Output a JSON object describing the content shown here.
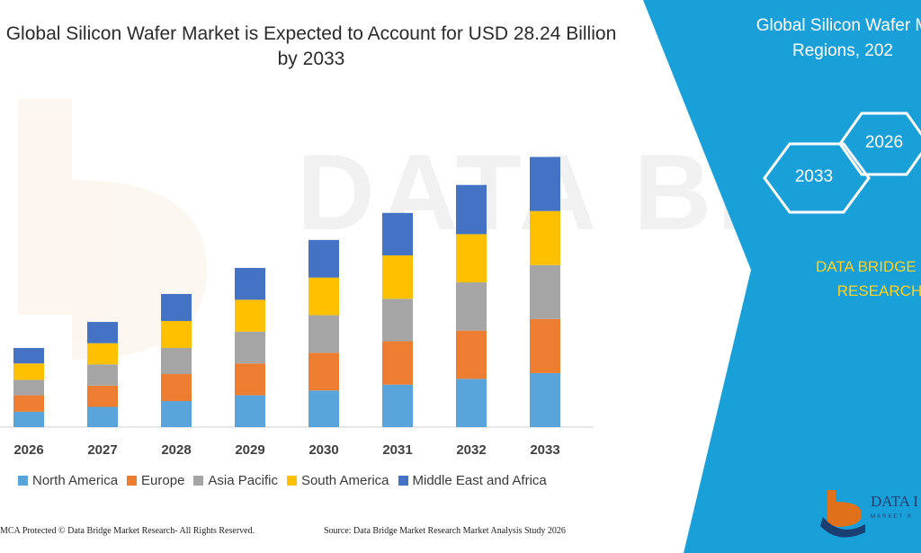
{
  "title": "Global Silicon Wafer Market is Expected to Account for USD 28.24 Billion by 2033",
  "right_panel": {
    "title_line1": "Global Silicon Wafer M",
    "title_line2": "Regions, 202",
    "hex_labels": [
      "2026",
      "2033"
    ],
    "brand_line1": "DATA BRIDGE MA",
    "brand_line2": "RESEARCH",
    "background_color": "#1aa0d8",
    "brand_text_color": "#ffd21f"
  },
  "footer": {
    "left": "MCA Protected © Data Bridge Market Research-  All Rights Reserved.",
    "right": "Source: Data Bridge Market Research  Market Analysis Study 2026"
  },
  "logo": {
    "text": "DATA I",
    "sub": "MARKET R"
  },
  "watermark": "DATA BRIDGE",
  "chart_data": {
    "type": "bar",
    "stacked": true,
    "categories": [
      "2026",
      "2027",
      "2028",
      "2029",
      "2030",
      "2031",
      "2032",
      "2033"
    ],
    "series": [
      {
        "name": "North America",
        "color": "#5aa4dc",
        "values": [
          1.6,
          2.1,
          2.7,
          3.3,
          3.8,
          4.4,
          5.0,
          5.6
        ]
      },
      {
        "name": "Europe",
        "color": "#ed7d31",
        "values": [
          1.7,
          2.2,
          2.8,
          3.3,
          3.9,
          4.5,
          5.0,
          5.6
        ]
      },
      {
        "name": "Asia Pacific",
        "color": "#a5a5a5",
        "values": [
          1.6,
          2.2,
          2.7,
          3.3,
          3.9,
          4.4,
          5.0,
          5.6
        ]
      },
      {
        "name": "South America",
        "color": "#ffc000",
        "values": [
          1.7,
          2.2,
          2.8,
          3.3,
          3.9,
          4.5,
          5.0,
          5.6
        ]
      },
      {
        "name": "Middle East and Africa",
        "color": "#4472c4",
        "values": [
          1.6,
          2.2,
          2.8,
          3.3,
          3.9,
          4.4,
          5.1,
          5.6
        ]
      }
    ],
    "ylim": [
      0,
      28.24
    ],
    "grid": false,
    "legend_position": "bottom"
  }
}
